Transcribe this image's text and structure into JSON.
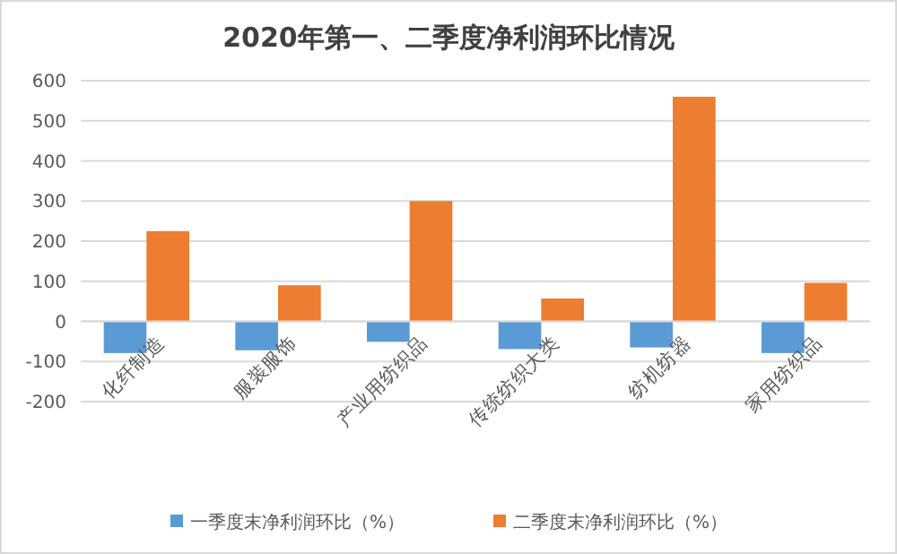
{
  "chart_data": {
    "type": "bar",
    "title": "2020年第一、二季度净利润环比情况",
    "categories": [
      "化纤制造",
      "服装服饰",
      "产业用纺织品",
      "传统纺织大类",
      "纺机纺器",
      "家用纺织品"
    ],
    "series": [
      {
        "name": "一季度末净利润环比（%）",
        "color": "#5b9bd5",
        "values": [
          -79,
          -72,
          -51,
          -69,
          -65,
          -79
        ]
      },
      {
        "name": "二季度末净利润环比（%）",
        "color": "#ed7d31",
        "values": [
          225,
          90,
          300,
          57,
          560,
          96
        ]
      }
    ],
    "ylim": [
      -200,
      600
    ],
    "yticks": [
      -200,
      -100,
      0,
      100,
      200,
      300,
      400,
      500,
      600
    ],
    "grid": "y",
    "legend": "bottom"
  }
}
